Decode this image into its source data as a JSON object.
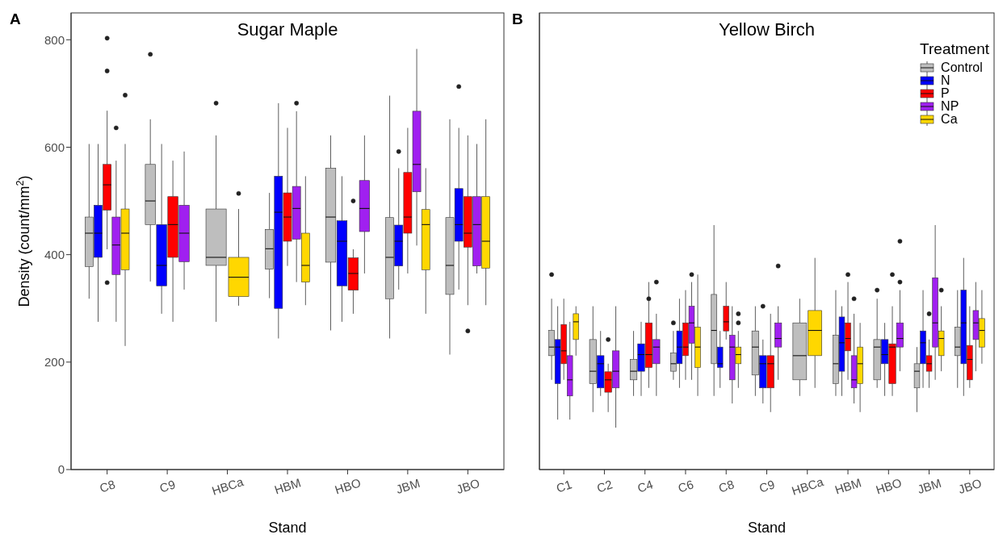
{
  "chart_data": [
    {
      "type": "box",
      "title": "Sugar Maple",
      "xlabel": "Stand",
      "ylabel": "Density (count/mm$^{2}$)",
      "annotations": [
        "A"
      ],
      "categories": [
        "C8",
        "C9",
        "HBCa",
        "HBM",
        "HBO",
        "JBM",
        "JBO"
      ],
      "ylim": [
        0,
        850
      ],
      "yticks": [
        0,
        200,
        400,
        600,
        800
      ],
      "series": [
        {
          "color": "#bebebe",
          "boxes": [
            {
              "low": 318,
              "q1": 378,
              "median": 440,
              "q3": 470,
              "high": 606
            },
            {
              "low": 350,
              "q1": 456,
              "median": 500,
              "q3": 568,
              "high": 652,
              "outliers": [
                773
              ]
            },
            {
              "low": 275,
              "q1": 380,
              "median": 395,
              "q3": 485,
              "high": 622,
              "outliers": [
                682
              ]
            },
            {
              "low": 319,
              "q1": 373,
              "median": 411,
              "q3": 447,
              "high": 515
            },
            {
              "low": 259,
              "q1": 386,
              "median": 470,
              "q3": 561,
              "high": 622
            },
            {
              "low": 244,
              "q1": 318,
              "median": 395,
              "q3": 469,
              "high": 696
            },
            {
              "low": 214,
              "q1": 326,
              "median": 380,
              "q3": 469,
              "high": 652
            }
          ]
        },
        {
          "color": "#0000ff",
          "boxes": [
            {
              "low": 275,
              "q1": 395,
              "median": 440,
              "q3": 492,
              "high": 606
            },
            {
              "low": 290,
              "q1": 342,
              "median": 380,
              "q3": 456,
              "high": 606
            },
            null,
            {
              "low": 244,
              "q1": 300,
              "median": 479,
              "q3": 546,
              "high": 682
            },
            {
              "low": 275,
              "q1": 342,
              "median": 425,
              "q3": 463,
              "high": 546
            },
            {
              "low": 335,
              "q1": 379,
              "median": 425,
              "q3": 455,
              "high": 561,
              "outliers": [
                592
              ]
            },
            {
              "low": 335,
              "q1": 425,
              "median": 456,
              "q3": 523,
              "high": 636,
              "outliers": [
                713
              ]
            }
          ]
        },
        {
          "color": "#ff0000",
          "boxes": [
            {
              "low": 410,
              "q1": 483,
              "median": 530,
              "q3": 568,
              "high": 668,
              "outliers": [
                348,
                742,
                803
              ]
            },
            {
              "low": 275,
              "q1": 395,
              "median": 456,
              "q3": 508,
              "high": 575
            },
            null,
            {
              "low": 379,
              "q1": 425,
              "median": 470,
              "q3": 515,
              "high": 636
            },
            {
              "low": 290,
              "q1": 334,
              "median": 365,
              "q3": 394,
              "high": 410,
              "outliers": [
                500
              ]
            },
            {
              "low": 365,
              "q1": 440,
              "median": 470,
              "q3": 553,
              "high": 636
            },
            {
              "low": 306,
              "q1": 414,
              "median": 440,
              "q3": 508,
              "high": 622,
              "outliers": [
                258
              ]
            }
          ]
        },
        {
          "color": "#a020f0",
          "boxes": [
            {
              "low": 275,
              "q1": 363,
              "median": 418,
              "q3": 470,
              "high": 575,
              "outliers": [
                636
              ]
            },
            {
              "low": 335,
              "q1": 387,
              "median": 440,
              "q3": 492,
              "high": 592
            },
            null,
            {
              "low": 349,
              "q1": 429,
              "median": 486,
              "q3": 527,
              "high": 667,
              "outliers": [
                682
              ]
            },
            {
              "low": 365,
              "q1": 443,
              "median": 486,
              "q3": 538,
              "high": 622
            },
            {
              "low": 417,
              "q1": 517,
              "median": 568,
              "q3": 667,
              "high": 783
            },
            {
              "low": 365,
              "q1": 379,
              "median": 456,
              "q3": 508,
              "high": 606
            }
          ]
        },
        {
          "color": "#ffd700",
          "boxes": [
            {
              "low": 230,
              "q1": 372,
              "median": 440,
              "q3": 485,
              "high": 606,
              "outliers": [
                697
              ]
            },
            null,
            {
              "low": 305,
              "q1": 322,
              "median": 358,
              "q3": 395,
              "high": 485,
              "outliers": [
                514
              ]
            },
            {
              "low": 306,
              "q1": 349,
              "median": 380,
              "q3": 440,
              "high": 546
            },
            null,
            {
              "low": 290,
              "q1": 372,
              "median": 456,
              "q3": 484,
              "high": 561
            },
            {
              "low": 306,
              "q1": 375,
              "median": 425,
              "q3": 508,
              "high": 652
            }
          ]
        }
      ]
    },
    {
      "type": "box",
      "title": "Yellow Birch",
      "xlabel": "Stand",
      "annotations": [
        "B"
      ],
      "legend": "top right",
      "legend_title": "Treatment",
      "tick_labels": "x",
      "categories": [
        "C1",
        "C2",
        "C4",
        "C6",
        "C8",
        "C9",
        "HBCa",
        "HBM",
        "HBO",
        "JBM",
        "JBO"
      ],
      "ylim": [
        0,
        850
      ],
      "yticks": [
        0,
        200,
        400,
        600,
        800
      ],
      "series": [
        {
          "name": "Control",
          "color": "#bebebe",
          "boxes": [
            {
              "low": 167,
              "q1": 212,
              "median": 228,
              "q3": 259,
              "high": 318,
              "outliers": [
                363
              ]
            },
            {
              "low": 107,
              "q1": 160,
              "median": 183,
              "q3": 242,
              "high": 304
            },
            {
              "low": 137,
              "q1": 167,
              "median": 183,
              "q3": 205,
              "high": 258
            },
            {
              "low": 167,
              "q1": 183,
              "median": 197,
              "q3": 217,
              "high": 258,
              "outliers": [
                273
              ]
            },
            {
              "low": 137,
              "q1": 197,
              "median": 259,
              "q3": 326,
              "high": 455
            },
            {
              "low": 137,
              "q1": 176,
              "median": 228,
              "q3": 258,
              "high": 304
            },
            {
              "low": 137,
              "q1": 167,
              "median": 212,
              "q3": 273,
              "high": 318
            },
            {
              "low": 137,
              "q1": 160,
              "median": 197,
              "q3": 250,
              "high": 334
            },
            {
              "low": 152,
              "q1": 167,
              "median": 228,
              "q3": 242,
              "high": 318,
              "outliers": [
                334
              ]
            },
            {
              "low": 107,
              "q1": 152,
              "median": 183,
              "q3": 197,
              "high": 228
            },
            {
              "low": 152,
              "q1": 212,
              "median": 228,
              "q3": 265,
              "high": 334
            }
          ]
        },
        {
          "name": "N",
          "color": "#0000ff",
          "boxes": [
            {
              "low": 93,
              "q1": 160,
              "median": 228,
              "q3": 242,
              "high": 304
            },
            {
              "low": 137,
              "q1": 152,
              "median": 197,
              "q3": 212,
              "high": 258
            },
            {
              "low": 137,
              "q1": 183,
              "median": 214,
              "q3": 234,
              "high": 275
            },
            {
              "low": 152,
              "q1": 197,
              "median": 228,
              "q3": 258,
              "high": 318
            },
            {
              "low": 152,
              "q1": 190,
              "median": 197,
              "q3": 228,
              "high": 258
            },
            {
              "low": 123,
              "q1": 152,
              "median": 197,
              "q3": 212,
              "high": 242,
              "outliers": [
                304
              ]
            },
            null,
            {
              "low": 137,
              "q1": 183,
              "median": 236,
              "q3": 284,
              "high": 304
            },
            {
              "low": 137,
              "q1": 197,
              "median": 214,
              "q3": 242,
              "high": 273
            },
            {
              "low": 152,
              "q1": 197,
              "median": 236,
              "q3": 258,
              "high": 334
            },
            {
              "low": 137,
              "q1": 197,
              "median": 273,
              "q3": 334,
              "high": 394
            }
          ]
        },
        {
          "name": "P",
          "color": "#ff0000",
          "boxes": [
            {
              "low": 167,
              "q1": 197,
              "median": 221,
              "q3": 270,
              "high": 318
            },
            {
              "low": 107,
              "q1": 144,
              "median": 167,
              "q3": 182,
              "high": 197,
              "outliers": [
                242
              ]
            },
            {
              "low": 152,
              "q1": 190,
              "median": 214,
              "q3": 273,
              "high": 349,
              "outliers": [
                318
              ]
            },
            {
              "low": 167,
              "q1": 212,
              "median": 228,
              "q3": 273,
              "high": 334
            },
            {
              "low": 242,
              "q1": 258,
              "median": 275,
              "q3": 304,
              "high": 349
            },
            {
              "low": 107,
              "q1": 152,
              "median": 197,
              "q3": 212,
              "high": 290
            },
            null,
            {
              "low": 167,
              "q1": 221,
              "median": 244,
              "q3": 273,
              "high": 349,
              "outliers": [
                363
              ]
            },
            {
              "low": 137,
              "q1": 160,
              "median": 228,
              "q3": 234,
              "high": 304,
              "outliers": [
                363
              ]
            },
            {
              "low": 152,
              "q1": 183,
              "median": 197,
              "q3": 212,
              "high": 242,
              "outliers": [
                290
              ]
            },
            {
              "low": 152,
              "q1": 167,
              "median": 205,
              "q3": 231,
              "high": 304
            }
          ]
        },
        {
          "name": "NP",
          "color": "#a020f0",
          "boxes": [
            {
              "low": 93,
              "q1": 137,
              "median": 167,
              "q3": 212,
              "high": 275
            },
            {
              "low": 78,
              "q1": 152,
              "median": 183,
              "q3": 221,
              "high": 304
            },
            {
              "low": 137,
              "q1": 197,
              "median": 228,
              "q3": 242,
              "high": 290,
              "outliers": [
                349
              ]
            },
            {
              "low": 167,
              "q1": 235,
              "median": 273,
              "q3": 304,
              "high": 349,
              "outliers": [
                363
              ]
            },
            {
              "low": 123,
              "q1": 167,
              "median": 228,
              "q3": 250,
              "high": 304
            },
            {
              "low": 167,
              "q1": 228,
              "median": 244,
              "q3": 273,
              "high": 304,
              "outliers": [
                379
              ]
            },
            null,
            {
              "low": 123,
              "q1": 152,
              "median": 167,
              "q3": 212,
              "high": 290,
              "outliers": [
                318
              ]
            },
            {
              "low": 183,
              "q1": 228,
              "median": 244,
              "q3": 273,
              "high": 334,
              "outliers": [
                349,
                425
              ]
            },
            {
              "low": 167,
              "q1": 228,
              "median": 273,
              "q3": 357,
              "high": 455
            },
            {
              "low": 183,
              "q1": 242,
              "median": 273,
              "q3": 296,
              "high": 349
            }
          ]
        },
        {
          "name": "Ca",
          "color": "#ffd700",
          "boxes": [
            {
              "low": 212,
              "q1": 242,
              "median": 275,
              "q3": 290,
              "high": 304
            },
            null,
            null,
            {
              "low": 137,
              "q1": 190,
              "median": 228,
              "q3": 265,
              "high": 363
            },
            {
              "low": 152,
              "q1": 197,
              "median": 214,
              "q3": 228,
              "high": 258,
              "outliers": [
                273,
                290
              ]
            },
            null,
            {
              "low": 152,
              "q1": 212,
              "median": 259,
              "q3": 296,
              "high": 394
            },
            {
              "low": 107,
              "q1": 160,
              "median": 197,
              "q3": 228,
              "high": 273
            },
            null,
            {
              "low": 183,
              "q1": 212,
              "median": 244,
              "q3": 258,
              "high": 304,
              "outliers": [
                334
              ]
            },
            {
              "low": 197,
              "q1": 228,
              "median": 259,
              "q3": 281,
              "high": 334
            }
          ]
        }
      ]
    }
  ]
}
